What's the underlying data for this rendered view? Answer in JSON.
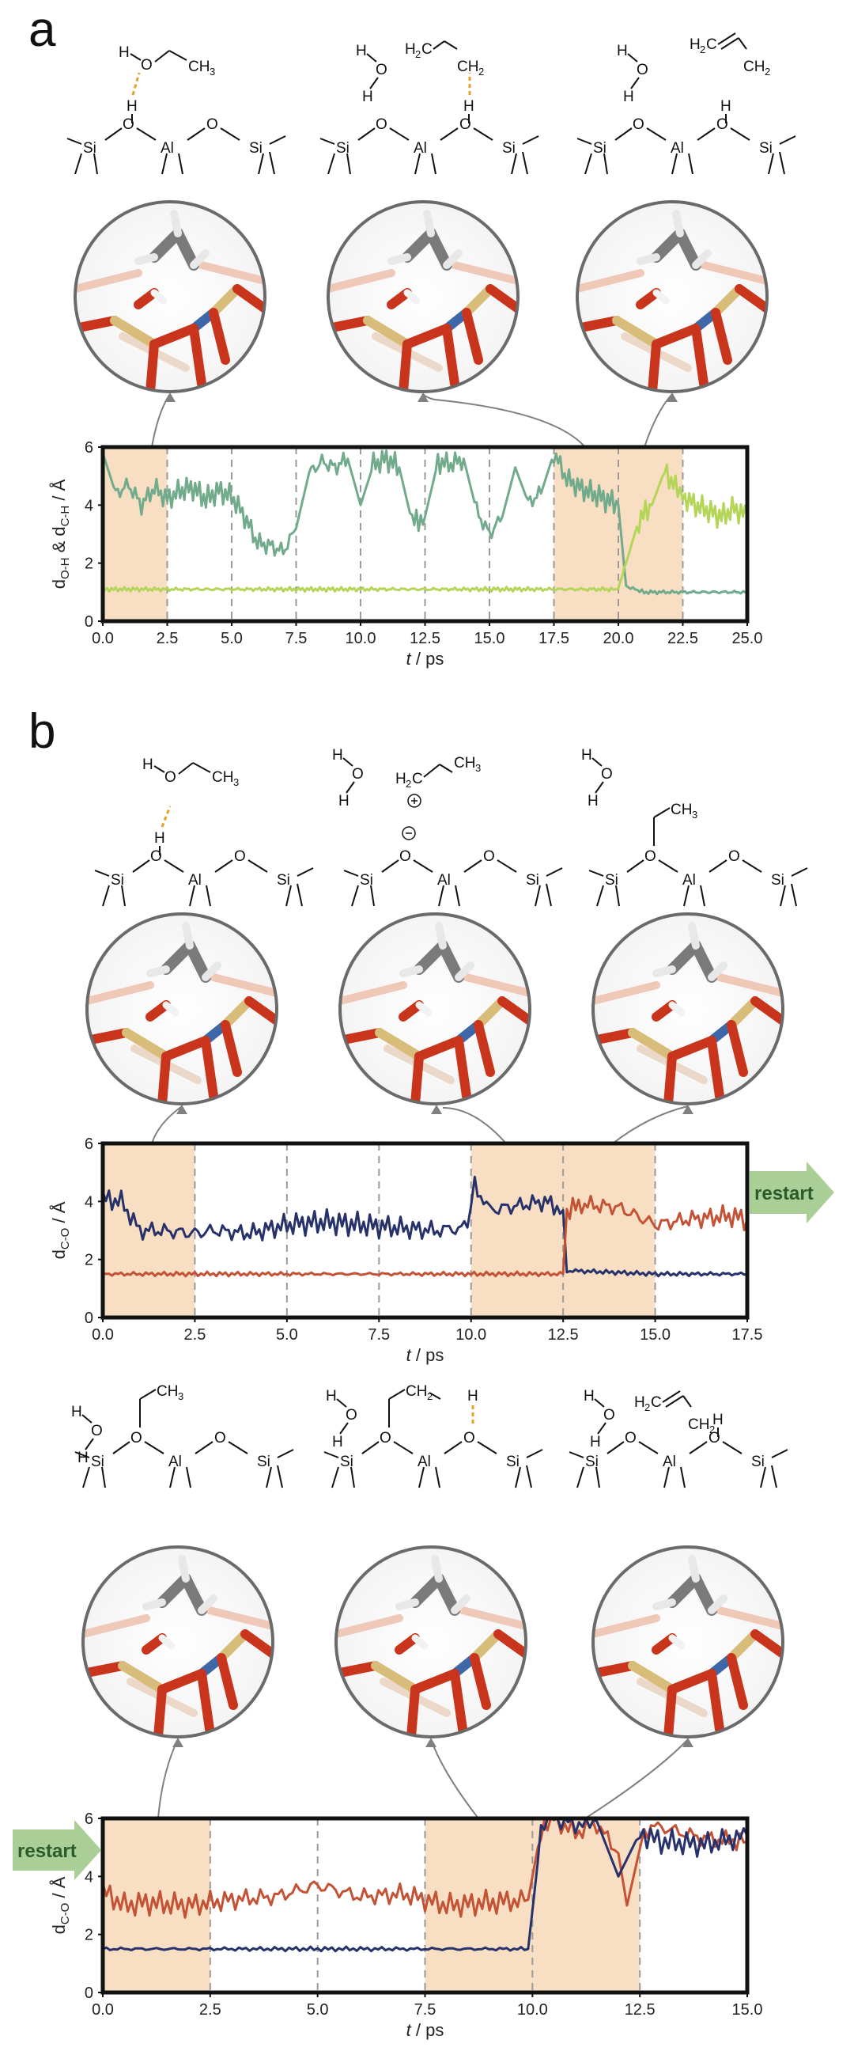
{
  "panels": {
    "a": {
      "label": "a",
      "structures": [
        {
          "water_left": [
            "H",
            "O",
            "CH"
          ],
          "ch3_sub": "3",
          "h_bridge": "H"
        },
        {
          "water": "H O H",
          "ethyl": "H2C CH2"
        },
        {
          "water": "H O H",
          "ethene": "H2C=CH2"
        }
      ]
    },
    "b": {
      "label": "b",
      "restart_label": "restart"
    }
  },
  "chem_labels": {
    "H": "H",
    "O": "O",
    "Si": "Si",
    "Al": "Al",
    "CH3": "CH",
    "sub3": "3",
    "H2C": "H",
    "sub2": "2",
    "C": "C",
    "CH2": "CH"
  },
  "colors": {
    "shade": "#f8dfc4",
    "green_dark": "#72ab8c",
    "green_light": "#b4d557",
    "navy": "#27326b",
    "rust": "#c45235",
    "restart_arrow": "#a9cf96"
  },
  "chart_data": [
    {
      "type": "line",
      "xlabel_italic": "t",
      "xlabel_rest": " / ps",
      "ylabel_parts": [
        "d",
        "O-H",
        " & d",
        "C-H",
        " / Å"
      ],
      "xlim": [
        0,
        25
      ],
      "ylim": [
        0,
        6
      ],
      "xticks": [
        "0.0",
        "2.5",
        "5.0",
        "7.5",
        "10.0",
        "12.5",
        "15.0",
        "17.5",
        "20.0",
        "22.5",
        "25.0"
      ],
      "yticks": [
        "0",
        "2",
        "4",
        "6"
      ],
      "shaded": [
        [
          0,
          2.5
        ],
        [
          17.5,
          22.5
        ]
      ],
      "dividers": [
        2.5,
        5,
        7.5,
        10,
        12.5,
        15,
        17.5,
        20,
        22.5
      ],
      "series": [
        {
          "color": "#72ab8c",
          "points": [
            [
              0,
              5.8
            ],
            [
              0.5,
              4.4
            ],
            [
              1,
              4.7
            ],
            [
              1.5,
              4.0
            ],
            [
              2,
              4.6
            ],
            [
              2.5,
              4.2
            ],
            [
              3,
              4.5
            ],
            [
              3.5,
              4.6
            ],
            [
              4,
              4.2
            ],
            [
              4.5,
              4.5
            ],
            [
              5,
              4.3
            ],
            [
              5.5,
              3.6
            ],
            [
              6,
              2.7
            ],
            [
              6.5,
              2.6
            ],
            [
              7,
              2.4
            ],
            [
              7.5,
              3.2
            ],
            [
              8,
              5.1
            ],
            [
              8.5,
              5.5
            ],
            [
              9,
              5.3
            ],
            [
              9.5,
              5.6
            ],
            [
              10,
              4.0
            ],
            [
              10.5,
              5.4
            ],
            [
              11,
              5.6
            ],
            [
              11.5,
              5.3
            ],
            [
              12,
              3.4
            ],
            [
              12.5,
              3.6
            ],
            [
              13,
              5.5
            ],
            [
              13.5,
              5.4
            ],
            [
              14,
              5.6
            ],
            [
              14.5,
              3.8
            ],
            [
              15,
              3.0
            ],
            [
              15.5,
              3.6
            ],
            [
              16,
              5.3
            ],
            [
              16.5,
              4.1
            ],
            [
              17,
              4.4
            ],
            [
              17.5,
              5.8
            ],
            [
              18,
              4.9
            ],
            [
              18.5,
              4.6
            ],
            [
              19,
              4.4
            ],
            [
              19.5,
              4.2
            ],
            [
              20,
              4.0
            ],
            [
              20.3,
              1.2
            ],
            [
              21,
              1.0
            ],
            [
              22,
              1.0
            ],
            [
              23,
              1.0
            ],
            [
              24,
              1.0
            ],
            [
              25,
              1.0
            ]
          ]
        },
        {
          "color": "#b4d557",
          "points": [
            [
              0,
              1.1
            ],
            [
              5,
              1.1
            ],
            [
              10,
              1.1
            ],
            [
              15,
              1.1
            ],
            [
              19.8,
              1.1
            ],
            [
              20,
              1.1
            ],
            [
              20.3,
              2.0
            ],
            [
              20.8,
              3.5
            ],
            [
              21.3,
              4.0
            ],
            [
              21.8,
              5.2
            ],
            [
              22.3,
              4.5
            ],
            [
              22.5,
              4.3
            ],
            [
              23,
              4.0
            ],
            [
              23.5,
              3.8
            ],
            [
              24,
              3.6
            ],
            [
              24.5,
              3.9
            ],
            [
              25,
              3.6
            ]
          ]
        }
      ]
    },
    {
      "type": "line",
      "xlabel_italic": "t",
      "xlabel_rest": " / ps",
      "ylabel_parts": [
        "d",
        "C-O",
        " / Å",
        "",
        ""
      ],
      "xlim": [
        0,
        17.5
      ],
      "ylim": [
        0,
        6
      ],
      "xticks": [
        "0.0",
        "2.5",
        "5.0",
        "7.5",
        "10.0",
        "12.5",
        "15.0",
        "17.5"
      ],
      "yticks": [
        "0",
        "2",
        "4",
        "6"
      ],
      "shaded": [
        [
          0,
          2.5
        ],
        [
          10,
          15
        ]
      ],
      "dividers": [
        2.5,
        5,
        7.5,
        10,
        12.5,
        15
      ],
      "series": [
        {
          "color": "#27326b",
          "points": [
            [
              0,
              4.1
            ],
            [
              0.5,
              4.0
            ],
            [
              1,
              3.0
            ],
            [
              1.5,
              3.0
            ],
            [
              2.5,
              2.9
            ],
            [
              3,
              3.0
            ],
            [
              4,
              2.9
            ],
            [
              5,
              3.2
            ],
            [
              6,
              3.3
            ],
            [
              7,
              3.2
            ],
            [
              8,
              3.1
            ],
            [
              9,
              3.0
            ],
            [
              9.9,
              3.1
            ],
            [
              10.1,
              4.6
            ],
            [
              10.5,
              3.7
            ],
            [
              11,
              3.8
            ],
            [
              12,
              4.0
            ],
            [
              12.5,
              3.7
            ],
            [
              12.6,
              1.6
            ],
            [
              13,
              1.6
            ],
            [
              15,
              1.5
            ],
            [
              17.5,
              1.5
            ]
          ]
        },
        {
          "color": "#c45235",
          "points": [
            [
              0,
              1.5
            ],
            [
              5,
              1.5
            ],
            [
              10,
              1.5
            ],
            [
              12.5,
              1.5
            ],
            [
              12.6,
              3.6
            ],
            [
              13,
              3.9
            ],
            [
              14,
              3.8
            ],
            [
              15,
              3.2
            ],
            [
              16,
              3.4
            ],
            [
              17,
              3.5
            ],
            [
              17.5,
              3.4
            ]
          ]
        }
      ]
    },
    {
      "type": "line",
      "xlabel_italic": "t",
      "xlabel_rest": " / ps",
      "ylabel_parts": [
        "d",
        "C-O",
        " / Å",
        "",
        ""
      ],
      "xlim": [
        0,
        15
      ],
      "ylim": [
        0,
        6
      ],
      "xticks": [
        "0.0",
        "2.5",
        "5.0",
        "7.5",
        "10.0",
        "12.5",
        "15.0"
      ],
      "yticks": [
        "0",
        "2",
        "4",
        "6"
      ],
      "shaded": [
        [
          0,
          2.5
        ],
        [
          7.5,
          12.5
        ]
      ],
      "dividers": [
        2.5,
        5,
        7.5,
        10,
        12.5
      ],
      "series": [
        {
          "color": "#c45235",
          "points": [
            [
              0,
              3.5
            ],
            [
              0.5,
              3.0
            ],
            [
              1,
              3.1
            ],
            [
              2,
              3.0
            ],
            [
              3,
              3.2
            ],
            [
              4,
              3.3
            ],
            [
              5,
              3.7
            ],
            [
              6,
              3.3
            ],
            [
              7,
              3.4
            ],
            [
              8,
              3.0
            ],
            [
              9,
              3.1
            ],
            [
              9.9,
              3.2
            ],
            [
              10.2,
              5.6
            ],
            [
              10.5,
              6.0
            ],
            [
              11,
              5.5
            ],
            [
              11.5,
              5.8
            ],
            [
              12,
              4.8
            ],
            [
              12.2,
              3.0
            ],
            [
              12.6,
              5.6
            ],
            [
              13,
              5.7
            ],
            [
              14,
              5.3
            ],
            [
              15,
              5.2
            ]
          ]
        },
        {
          "color": "#27326b",
          "points": [
            [
              0,
              1.5
            ],
            [
              5,
              1.5
            ],
            [
              9.9,
              1.5
            ],
            [
              10.2,
              5.5
            ],
            [
              10.5,
              6.0
            ],
            [
              11,
              5.8
            ],
            [
              11.5,
              5.9
            ],
            [
              12,
              4.0
            ],
            [
              12.5,
              5.5
            ],
            [
              13,
              5.2
            ],
            [
              14,
              5.1
            ],
            [
              15,
              5.4
            ]
          ]
        }
      ]
    }
  ]
}
